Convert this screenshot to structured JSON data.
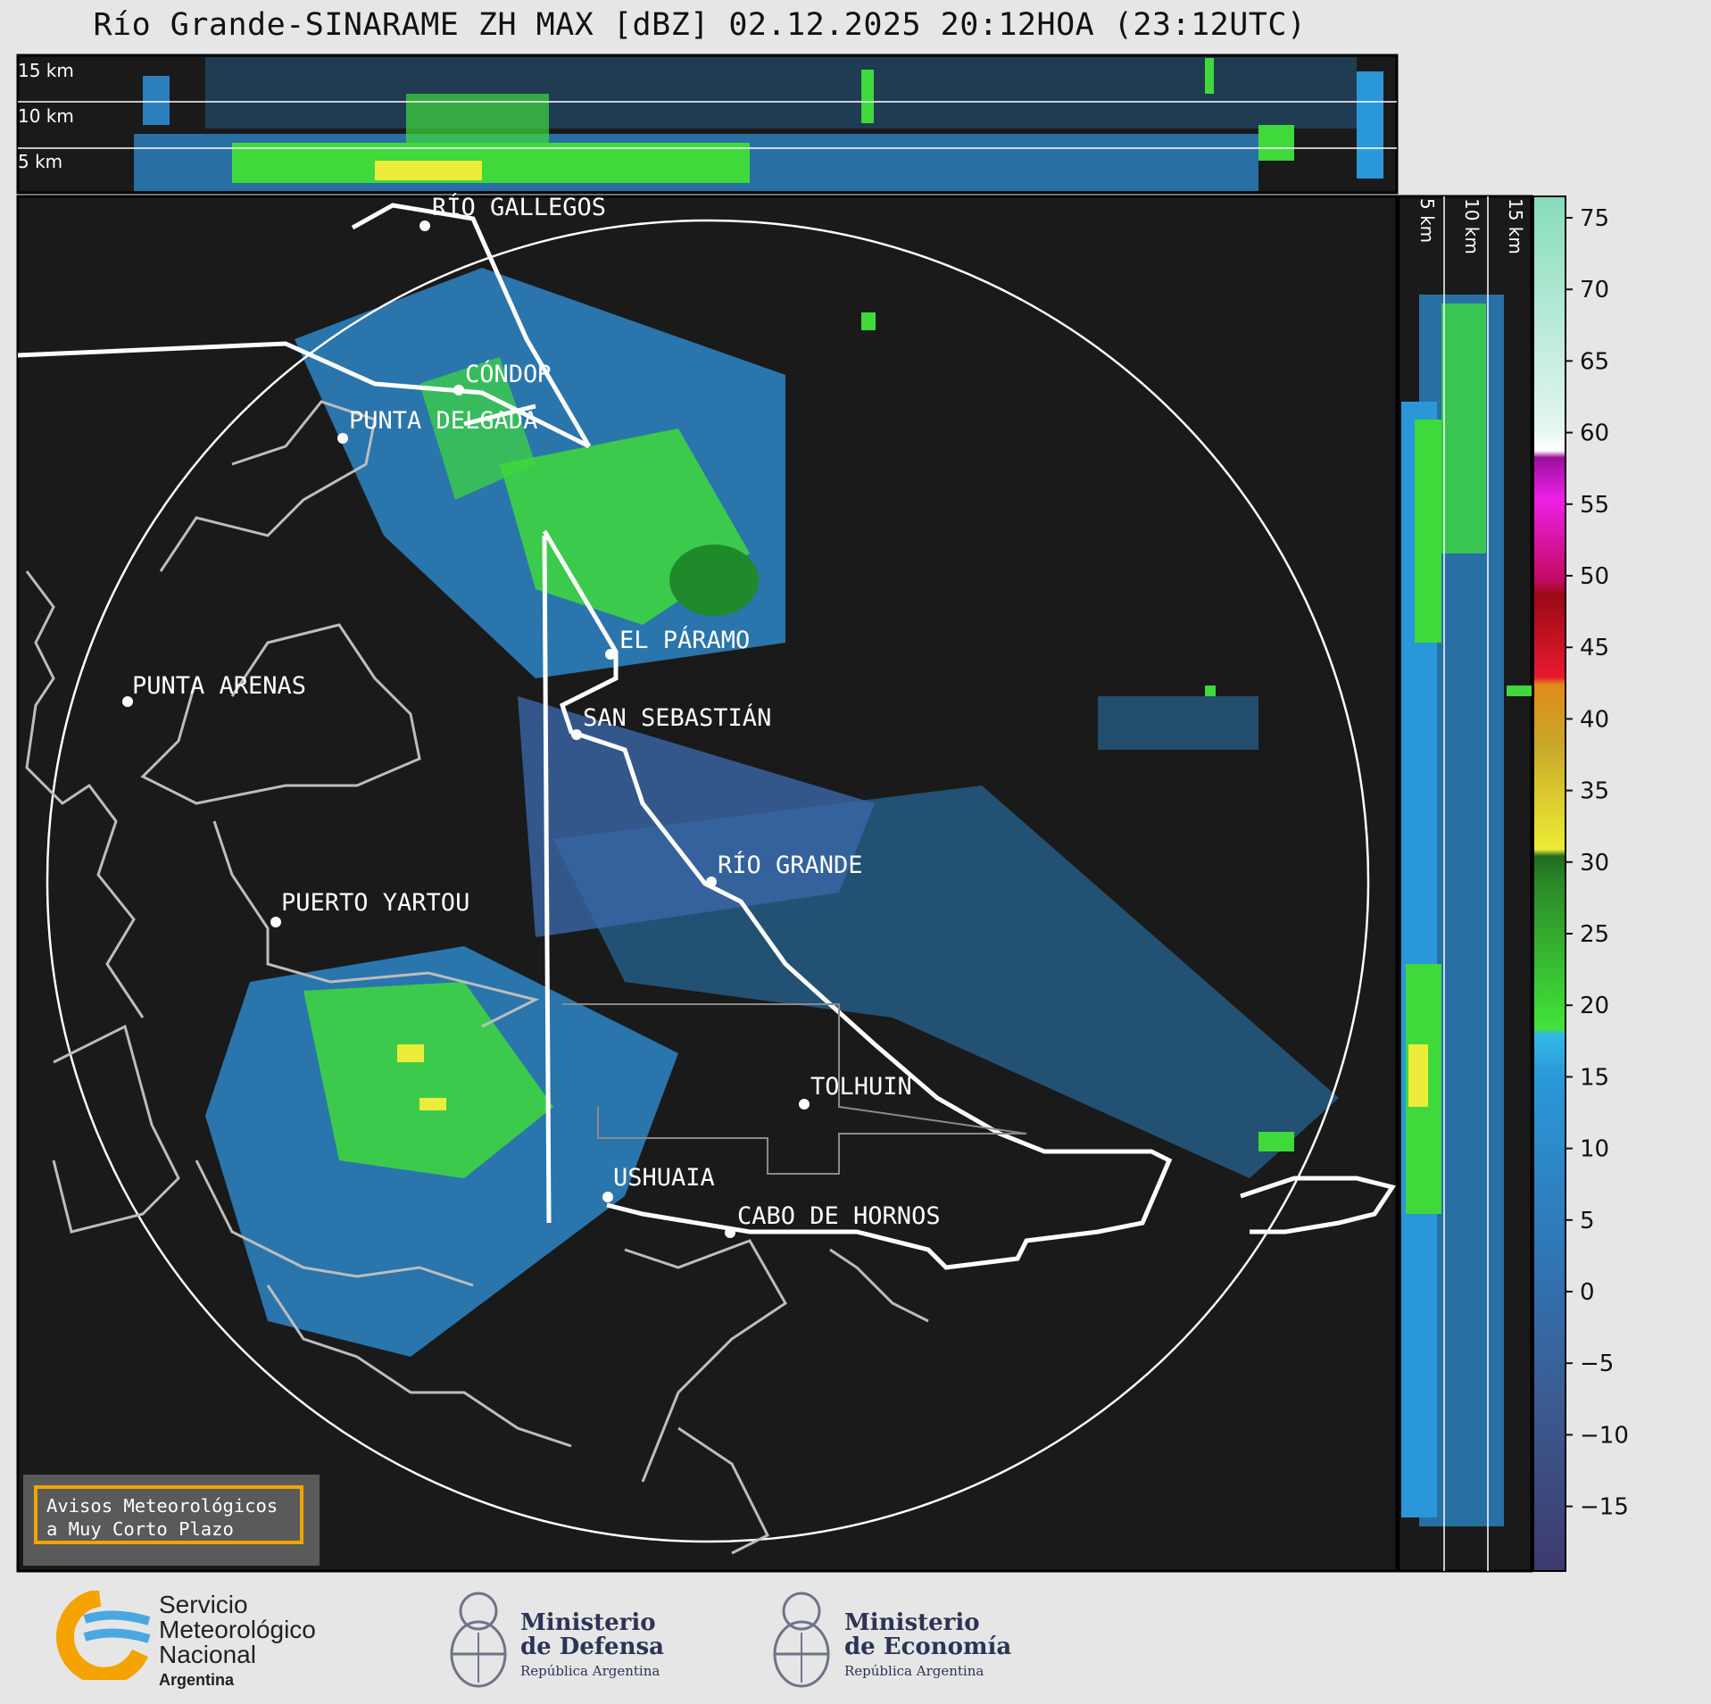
{
  "title": "Río Grande-SINARAME ZH MAX [dBZ] 02.12.2025 20:12HOA (23:12UTC)",
  "top_panel": {
    "altitude_labels": [
      "15 km",
      "10 km",
      "5 km"
    ]
  },
  "side_panel": {
    "altitude_labels": [
      "5 km",
      "10 km",
      "15 km"
    ]
  },
  "locations": [
    {
      "name": "RÍO GALLEGOS"
    },
    {
      "name": "CÓNDOR"
    },
    {
      "name": "PUNTA DELGADA"
    },
    {
      "name": "EL PÁRAMO"
    },
    {
      "name": "PUNTA ARENAS"
    },
    {
      "name": "SAN SEBASTIÁN"
    },
    {
      "name": "RÍO GRANDE"
    },
    {
      "name": "PUERTO YARTOU"
    },
    {
      "name": "TOLHUIN"
    },
    {
      "name": "USHUAIA"
    },
    {
      "name": "CABO DE HORNOS"
    }
  ],
  "colorbar": {
    "unit": "dBZ",
    "ticks": [
      "75",
      "70",
      "65",
      "60",
      "55",
      "50",
      "45",
      "40",
      "35",
      "30",
      "25",
      "20",
      "15",
      "10",
      "5",
      "0",
      "−5",
      "−10",
      "−15"
    ],
    "colors": {
      "low": "#3d3a6e",
      "blue": "#2f8fcf",
      "green": "#3fd93c",
      "yellow": "#ecec3a",
      "orange": "#e08a1a",
      "red": "#d41428",
      "magenta": "#e020d8",
      "white": "#ffffff",
      "mint": "#8ee0c0"
    }
  },
  "avisos": {
    "line1": "Avisos Meteorológicos",
    "line2": "a Muy Corto Plazo"
  },
  "logos": {
    "smn": {
      "line1": "Servicio",
      "line2": "Meteorológico",
      "line3": "Nacional",
      "line4": "Argentina"
    },
    "defensa": {
      "line1": "Ministerio",
      "line2": "de Defensa",
      "line3": "República Argentina"
    },
    "economia": {
      "line1": "Ministerio",
      "line2": "de Economía",
      "line3": "República Argentina"
    }
  }
}
